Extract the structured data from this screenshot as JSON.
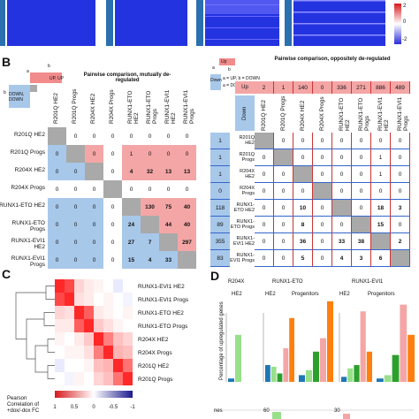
{
  "panel_a": {
    "colorbar_ticks": [
      "2",
      "0",
      "-2"
    ]
  },
  "panel_b": {
    "letter": "B",
    "left": {
      "title": "Pairwise comparison, mutually de-regulated",
      "legend_a": "a",
      "legend_b": "b",
      "legend_up": "UP, UP",
      "legend_down": "DOWN, DOWN",
      "labels": [
        "R201Q HE2",
        "R201Q Progs",
        "R204X HE2",
        "R204X Progs",
        "RUNX1-ETO HE2",
        "RUNX1-ETO Progs",
        "RUNX1-EVI1 HE2",
        "RUNX1-EVI1 Progs"
      ],
      "matrix": [
        [
          "",
          "0",
          "0",
          "0",
          "0",
          "0",
          "0",
          "0"
        ],
        [
          "0",
          "",
          "0",
          "0",
          "1",
          "0",
          "0",
          "0"
        ],
        [
          "0",
          "0",
          "",
          "0",
          "4",
          "32",
          "13",
          "13"
        ],
        [
          "0",
          "0",
          "0",
          "",
          "0",
          "0",
          "0",
          "0"
        ],
        [
          "0",
          "0",
          "0",
          "0",
          "",
          "130",
          "75",
          "40"
        ],
        [
          "0",
          "0",
          "0",
          "0",
          "24",
          "",
          "44",
          "40"
        ],
        [
          "0",
          "0",
          "0",
          "0",
          "27",
          "7",
          "",
          "297"
        ],
        [
          "0",
          "0",
          "0",
          "0",
          "15",
          "4",
          "33",
          ""
        ]
      ]
    },
    "right": {
      "title": "Pairwise comparison, oppositely de-regulated",
      "legend_up": "Up",
      "legend_down": "Down",
      "legend_a": "a",
      "legend_b": "b",
      "legend_text": "a = UP, b = DOWN",
      "legend_text2": "a = DOWN, b = UP",
      "header_up": "Up",
      "header_down": "Down",
      "col_counts": [
        "2",
        "1",
        "140",
        "0",
        "336",
        "271",
        "886",
        "489"
      ],
      "row_counts": [
        "1",
        "1",
        "1",
        "0",
        "118",
        "89",
        "355",
        "83"
      ],
      "col_labels": [
        "R201Q HE2",
        "R201Q Progs",
        "R204X HE2",
        "R204X Progs",
        "RUNX1-ETO HE2",
        "RUNX1-ETO Progs",
        "RUNX1-EVI1 HE2",
        "RUNX1-EVI1 Progs"
      ],
      "row_labels": [
        "R201Q HE2",
        "R201Q Progs",
        "R204X HE2",
        "R204X Progs",
        "RUNX1-ETO HE2",
        "RUNX1-ETO Progs",
        "RUNX1-EVI1 HE2",
        "RUNX1-EVI1 Progs"
      ],
      "matrix": [
        [
          "",
          "0",
          "0",
          "0",
          "0",
          "0",
          "0",
          "0"
        ],
        [
          "0",
          "",
          "0",
          "0",
          "0",
          "0",
          "1",
          "0"
        ],
        [
          "0",
          "0",
          "",
          "0",
          "0",
          "0",
          "1",
          "0"
        ],
        [
          "0",
          "0",
          "0",
          "",
          "0",
          "0",
          "0",
          "0"
        ],
        [
          "0",
          "0",
          "10",
          "0",
          "",
          "0",
          "18",
          "3"
        ],
        [
          "0",
          "0",
          "8",
          "0",
          "0",
          "",
          "15",
          "0"
        ],
        [
          "0",
          "0",
          "36",
          "0",
          "33",
          "38",
          "",
          "2"
        ],
        [
          "0",
          "0",
          "5",
          "0",
          "4",
          "3",
          "6",
          ""
        ]
      ]
    }
  },
  "panel_c": {
    "letter": "C",
    "labels": [
      "RUNX1-EVI1 HE2",
      "RUNX1-EVI1 Progs",
      "RUNX1-ETO HE2",
      "RUNX1-ETO Progs",
      "R204X HE2",
      "R204X Progs",
      "R201Q HE2",
      "R201Q Progs"
    ],
    "colorbar_ticks": [
      "1",
      "0.5",
      "0",
      "-0.5",
      "-1"
    ],
    "colorbar_title_1": "Pearson",
    "colorbar_title_2": "Correlation of",
    "colorbar_title_3": "+dox/-dox FC",
    "matrix": [
      [
        1.0,
        0.85,
        0.2,
        0.1,
        0.05,
        0.0,
        -0.1,
        0.0
      ],
      [
        0.85,
        1.0,
        0.15,
        0.1,
        0.0,
        0.05,
        0.0,
        -0.05
      ],
      [
        0.2,
        0.15,
        1.0,
        0.75,
        0.1,
        0.05,
        0.0,
        0.05
      ],
      [
        0.1,
        0.1,
        0.75,
        1.0,
        0.25,
        0.15,
        0.05,
        0.0
      ],
      [
        0.05,
        0.0,
        0.1,
        0.25,
        1.0,
        0.6,
        0.3,
        0.2
      ],
      [
        0.0,
        0.05,
        0.05,
        0.15,
        0.6,
        1.0,
        0.35,
        0.3
      ],
      [
        -0.1,
        0.0,
        0.0,
        0.05,
        0.3,
        0.35,
        1.0,
        0.65
      ],
      [
        0.0,
        -0.05,
        0.05,
        0.0,
        0.2,
        0.3,
        0.65,
        1.0
      ]
    ]
  },
  "panel_d": {
    "letter": "D",
    "ylabel": "Percentage of upregulated genes",
    "group_r204x": "R204X",
    "group_eto": "RUNX1-ETO",
    "group_evi1": "RUNX1-EVI1",
    "sub_he2_1": "HE2",
    "sub_he2_2": "HE2",
    "sub_prog_2": "Progenitors",
    "sub_he2_3": "HE2",
    "sub_prog_3": "Progenitors",
    "bottom_labels": [
      "nes",
      "60",
      "30"
    ]
  },
  "chart_data": [
    {
      "type": "heatmap",
      "title": "",
      "rows": [
        "RUNX1-EVI1 HE2",
        "RUNX1-EVI1 Progs",
        "RUNX1-ETO HE2",
        "RUNX1-ETO Progs",
        "R204X HE2",
        "R204X Progs",
        "R201Q HE2",
        "R201Q Progs"
      ],
      "cols": [
        "RUNX1-EVI1 HE2",
        "RUNX1-EVI1 Progs",
        "RUNX1-ETO HE2",
        "RUNX1-ETO Progs",
        "R204X HE2",
        "R204X Progs",
        "R201Q HE2",
        "R201Q Progs"
      ],
      "vrange": [
        -1,
        1
      ]
    },
    {
      "type": "bar",
      "title": "",
      "ylabel": "Percentage of upregulated genes",
      "groups": [
        {
          "name": "R204X HE2",
          "values": [
            2,
            28,
            0,
            0,
            0
          ]
        },
        {
          "name": "RUNX1-ETO HE2",
          "values": [
            10,
            9,
            5,
            20,
            38
          ]
        },
        {
          "name": "RUNX1-ETO Progenitors",
          "values": [
            4,
            7,
            18,
            26,
            48
          ]
        },
        {
          "name": "RUNX1-EVI1 HE2",
          "values": [
            3,
            8,
            10,
            42,
            18
          ]
        },
        {
          "name": "RUNX1-EVI1 Progenitors",
          "values": [
            2,
            4,
            16,
            46,
            28
          ]
        }
      ],
      "colors": [
        "#1f77b4",
        "#98df8a",
        "#2ca02c",
        "#f4a6a6",
        "#ff7f0e"
      ],
      "ylim": [
        0,
        50
      ]
    }
  ]
}
